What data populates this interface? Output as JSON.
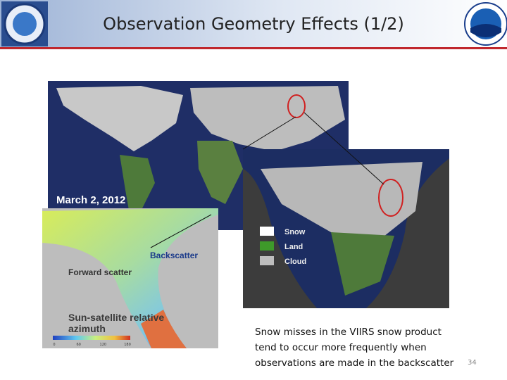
{
  "header": {
    "title": "Observation Geometry Effects (1/2)"
  },
  "figure": {
    "map_date": "March 2, 2012",
    "legend": [
      "Snow",
      "Land",
      "Cloud"
    ],
    "scatter_labels": [
      "Backscatter",
      "Forward scatter"
    ],
    "azimuth_label": [
      "Sun-satellite relative",
      "azimuth"
    ],
    "colorbar_ticks": [
      0,
      60,
      120,
      180
    ]
  },
  "caption": [
    "Snow misses in the VIIRS snow product",
    "tend to occur more frequently when",
    "observations are made in the backscatter"
  ],
  "page_number": "34"
}
